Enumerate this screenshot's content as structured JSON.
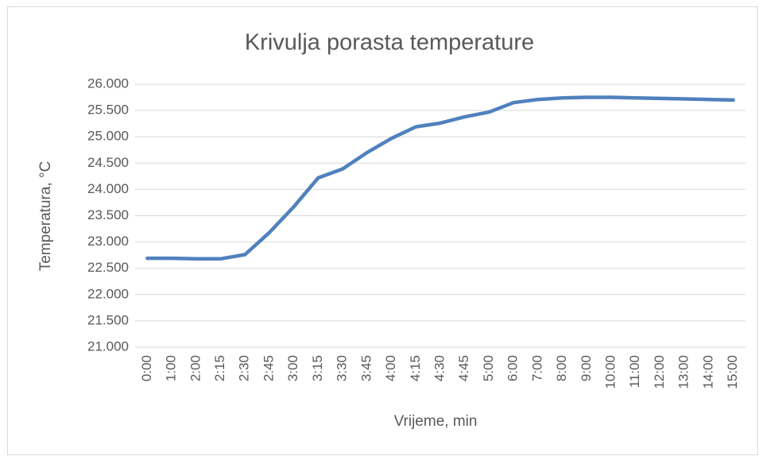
{
  "chart_data": {
    "type": "line",
    "title": "Krivulja porasta temperature",
    "x_label": "Vrijeme, min",
    "y_label": "Temperatura, °C",
    "categories": [
      "0:00",
      "1:00",
      "2:00",
      "2:15",
      "2:30",
      "2:45",
      "3:00",
      "3:15",
      "3:30",
      "3:45",
      "4:00",
      "4:15",
      "4:30",
      "4:45",
      "5:00",
      "6:00",
      "7:00",
      "8:00",
      "9:00",
      "10:00",
      "11:00",
      "12:00",
      "13:00",
      "14:00",
      "15:00"
    ],
    "series": [
      {
        "name": "Temperatura",
        "color": "#4f81bd",
        "values": [
          22.69,
          22.69,
          22.68,
          22.68,
          22.76,
          23.18,
          23.67,
          24.22,
          24.39,
          24.7,
          24.97,
          25.19,
          25.26,
          25.38,
          25.47,
          25.65,
          25.71,
          25.74,
          25.75,
          25.75,
          25.74,
          25.73,
          25.72,
          25.71,
          25.7
        ]
      }
    ],
    "ylim": [
      21,
      26
    ],
    "yticks": [
      {
        "value": 21,
        "label": "21.000"
      },
      {
        "value": 21.5,
        "label": "21.500"
      },
      {
        "value": 22,
        "label": "22.000"
      },
      {
        "value": 22.5,
        "label": "22.500"
      },
      {
        "value": 23,
        "label": "23.000"
      },
      {
        "value": 23.5,
        "label": "23.500"
      },
      {
        "value": 24,
        "label": "24.000"
      },
      {
        "value": 24.5,
        "label": "24.500"
      },
      {
        "value": 25,
        "label": "25.000"
      },
      {
        "value": 25.5,
        "label": "25.500"
      },
      {
        "value": 26,
        "label": "26.000"
      }
    ],
    "grid": true
  }
}
